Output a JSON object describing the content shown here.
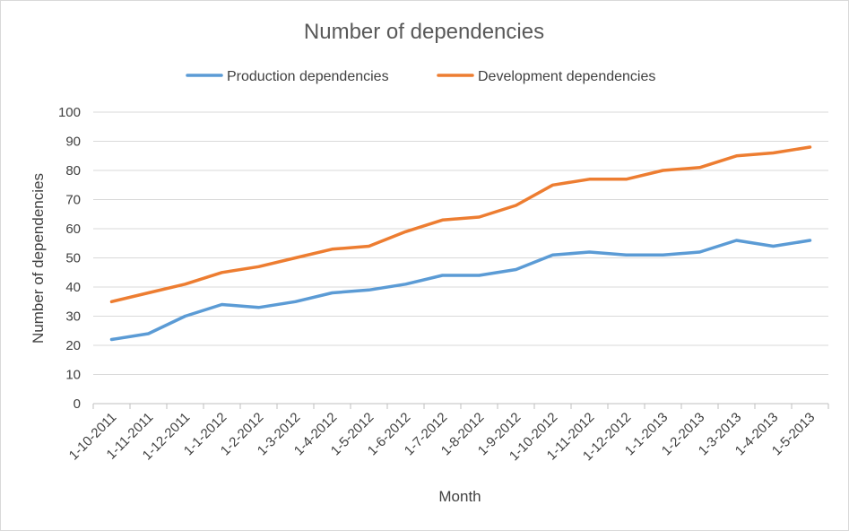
{
  "chart_data": {
    "type": "line",
    "title": "Number of dependencies",
    "xlabel": "Month",
    "ylabel": "Number of dependencies",
    "ylim": [
      0,
      100
    ],
    "yticks": [
      0,
      10,
      20,
      30,
      40,
      50,
      60,
      70,
      80,
      90,
      100
    ],
    "grid": "horizontal",
    "legend_position": "top",
    "categories": [
      "1-10-2011",
      "1-11-2011",
      "1-12-2011",
      "1-1-2012",
      "1-2-2012",
      "1-3-2012",
      "1-4-2012",
      "1-5-2012",
      "1-6-2012",
      "1-7-2012",
      "1-8-2012",
      "1-9-2012",
      "1-10-2012",
      "1-11-2012",
      "1-12-2012",
      "1-1-2013",
      "1-2-2013",
      "1-3-2013",
      "1-4-2013",
      "1-5-2013"
    ],
    "series": [
      {
        "name": "Production dependencies",
        "color": "#5b9bd5",
        "values": [
          22,
          24,
          30,
          34,
          33,
          35,
          38,
          39,
          41,
          44,
          44,
          46,
          51,
          52,
          51,
          51,
          52,
          56,
          54,
          56
        ]
      },
      {
        "name": "Development dependencies",
        "color": "#ed7d31",
        "values": [
          35,
          38,
          41,
          45,
          47,
          50,
          53,
          54,
          59,
          63,
          64,
          68,
          75,
          77,
          77,
          80,
          81,
          85,
          86,
          88
        ]
      }
    ]
  }
}
